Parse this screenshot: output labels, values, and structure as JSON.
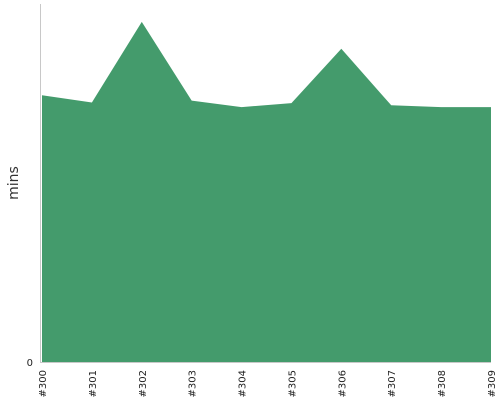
{
  "chart_data": {
    "type": "area",
    "title": "",
    "xlabel": "",
    "ylabel": "mins",
    "categories": [
      "#300",
      "#301",
      "#302",
      "#303",
      "#304",
      "#305",
      "#306",
      "#307",
      "#308",
      "#309"
    ],
    "series": [
      {
        "values": [
          74.5,
          72.5,
          95.0,
          73.0,
          71.2,
          72.3,
          87.5,
          71.7,
          71.2,
          71.2
        ]
      }
    ],
    "ylim": [
      0,
      100
    ],
    "y_ticks": [
      0
    ],
    "grid": false,
    "legend": "none",
    "colors": {
      "area": "#449b6c",
      "axis": "#c8c8c8"
    }
  }
}
